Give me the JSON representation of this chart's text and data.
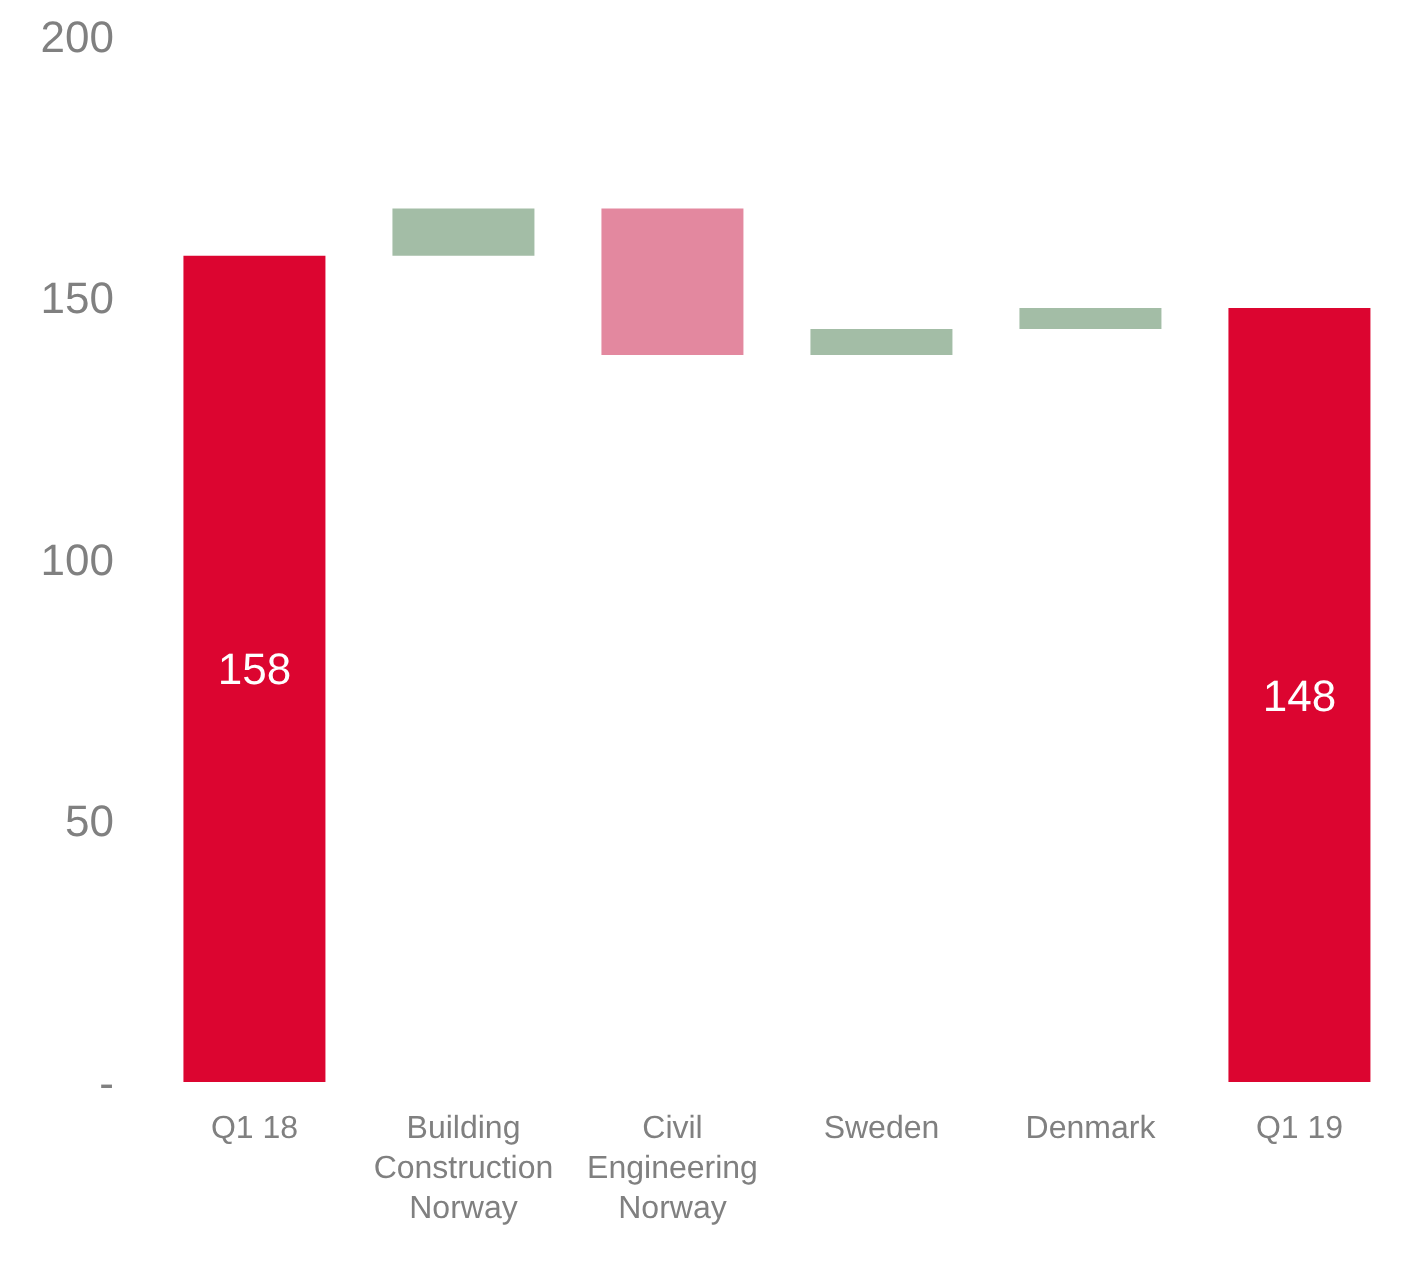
{
  "chart_data": {
    "type": "bar",
    "categories": [
      "Q1 18",
      "Building Construction Norway",
      "Civil Engineering Norway",
      "Sweden",
      "Denmark",
      "Q1 19"
    ],
    "values": [
      158,
      9,
      -28,
      5,
      4,
      148
    ],
    "base": [
      0,
      158,
      167,
      139,
      144,
      0
    ],
    "colors": [
      "#dc0530",
      "#a3bda6",
      "#e3889f",
      "#a3bda6",
      "#a3bda6",
      "#dc0530"
    ],
    "value_labels": [
      "158",
      null,
      null,
      null,
      null,
      "148"
    ],
    "ylim": [
      0,
      200
    ],
    "yticks": [
      {
        "value": 0,
        "label": "-"
      },
      50,
      100,
      150,
      200
    ],
    "grid": false,
    "legend": false
  }
}
